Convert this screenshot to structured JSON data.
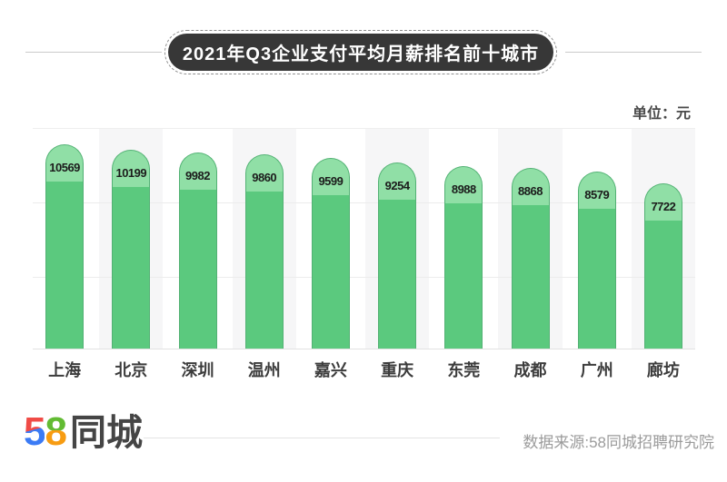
{
  "title": "2021年Q3企业支付平均月薪排名前十城市",
  "unit_label": "单位：元",
  "chart_data": {
    "type": "bar",
    "title": "2021年Q3企业支付平均月薪排名前十城市",
    "categories": [
      "上海",
      "北京",
      "深圳",
      "温州",
      "嘉兴",
      "重庆",
      "东莞",
      "成都",
      "广州",
      "廊坊"
    ],
    "values": [
      10569,
      10199,
      9982,
      9860,
      9599,
      9254,
      8988,
      8868,
      8579,
      7722
    ],
    "xlabel": "",
    "ylabel": "元",
    "unit": "元",
    "value_labels_shown": true,
    "legend": "none",
    "grid": "horizontal",
    "bar_body_color": "#5bc97e",
    "bar_cap_color": "#90dfa6",
    "bar_border_color": "#53b174",
    "alt_band_color": "#f6f6f7"
  },
  "footer": {
    "logo": {
      "five": "5",
      "eight": "8",
      "cn": "同城"
    },
    "source": "数据来源:58同城招聘研究院"
  },
  "colors": {
    "title_pill_bg": "#373737",
    "title_text": "#ffffff",
    "logo_red": "#f04b46",
    "logo_blue": "#3b7bf5",
    "logo_green": "#62bb33",
    "logo_orange": "#f79c12",
    "source_text": "#9b9b9b"
  }
}
